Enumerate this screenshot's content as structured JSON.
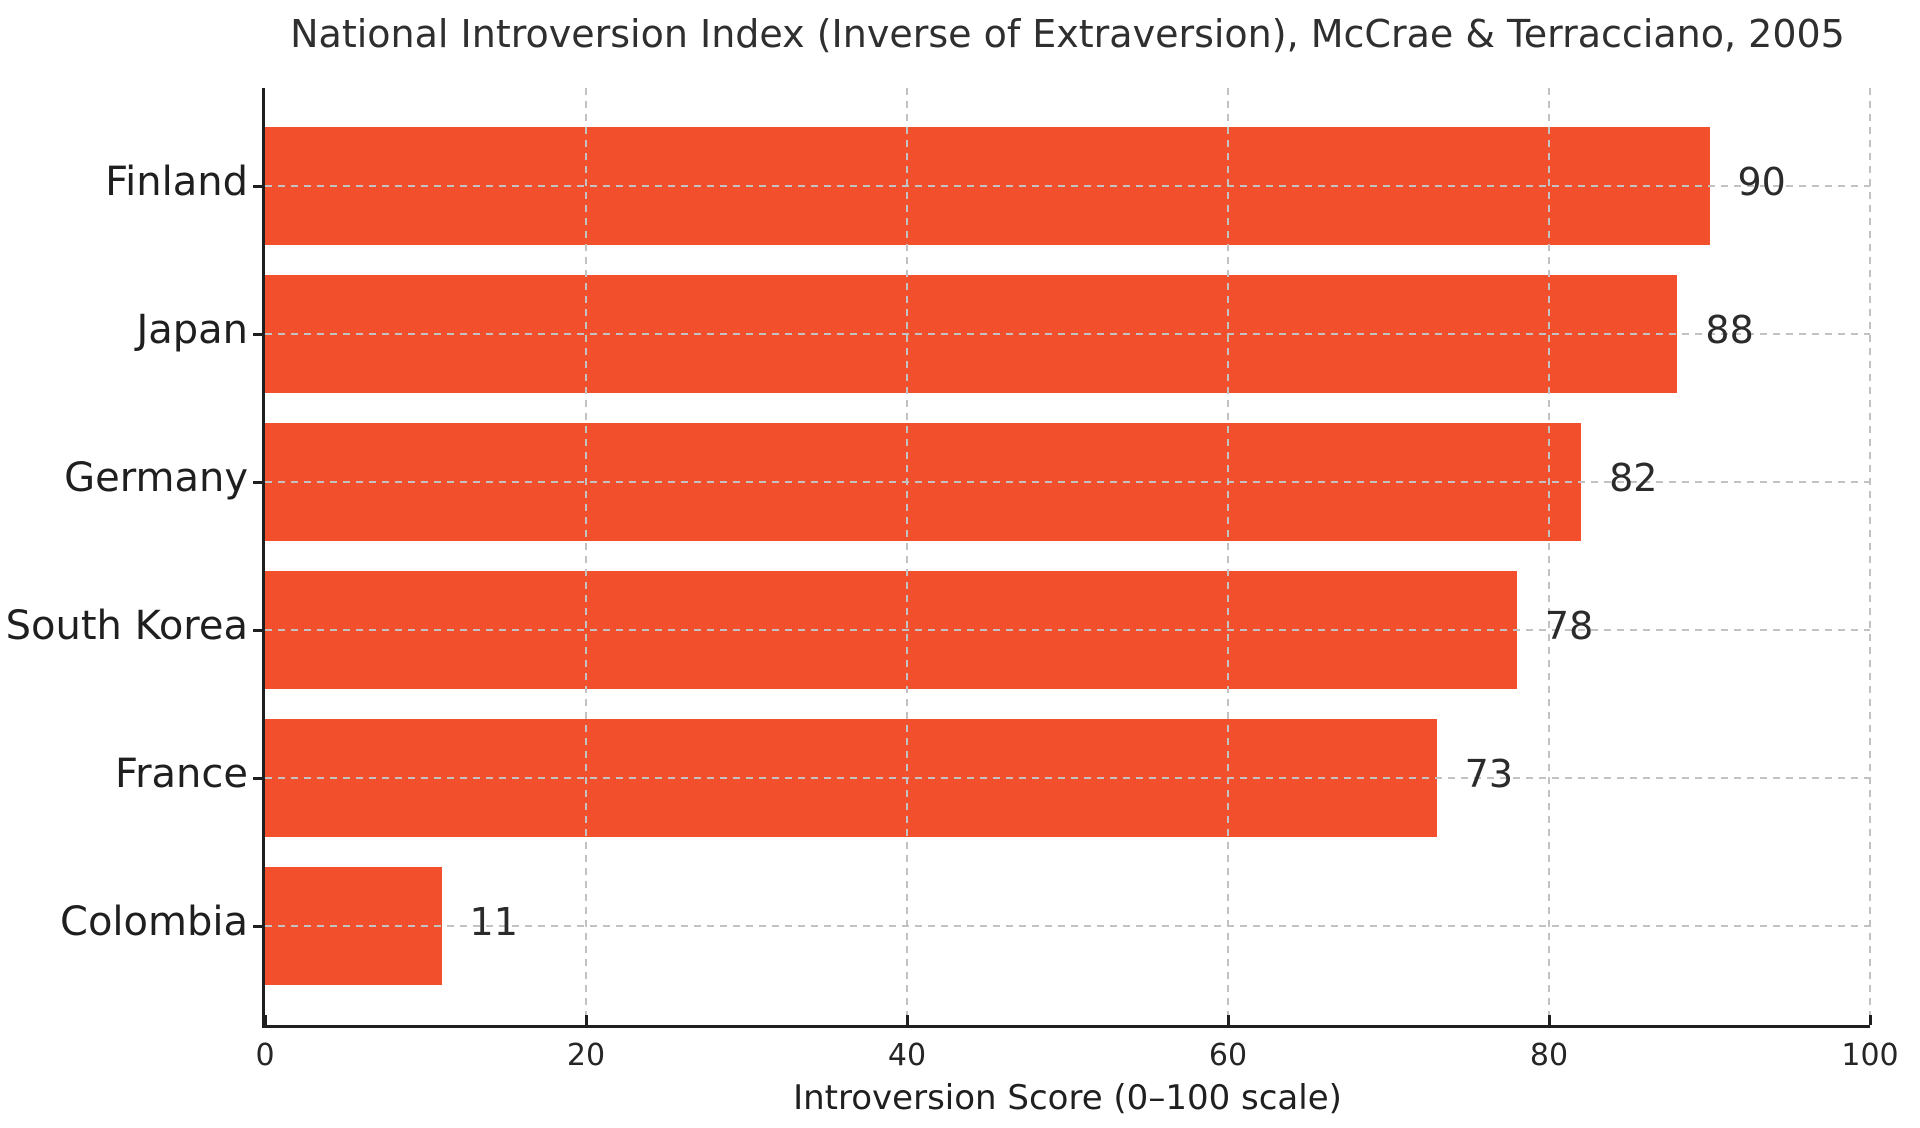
{
  "figure": {
    "background_color": "#ffffff",
    "text_color": "#262626"
  },
  "chart_data": {
    "type": "bar",
    "orientation": "horizontal",
    "title": "National Introversion Index (Inverse of Extraversion), McCrae & Terracciano, 2005",
    "xlabel": "Introversion Score (0–100 scale)",
    "categories": [
      "Finland",
      "Japan",
      "Germany",
      "South Korea",
      "France",
      "Colombia"
    ],
    "values": [
      90,
      88,
      82,
      78,
      73,
      11
    ],
    "value_labels": [
      "90",
      "88",
      "82",
      "78",
      "73",
      "11"
    ],
    "xlim": [
      0,
      100
    ],
    "xticks": [
      0,
      20,
      40,
      60,
      80,
      100
    ],
    "xtick_labels": [
      "0",
      "20",
      "40",
      "60",
      "80",
      "100"
    ],
    "bar_color": "#f2502c",
    "grid": true,
    "grid_style": "dashed",
    "grid_color": "#c2c2c2",
    "grid_above_bars": true,
    "legend": null
  }
}
